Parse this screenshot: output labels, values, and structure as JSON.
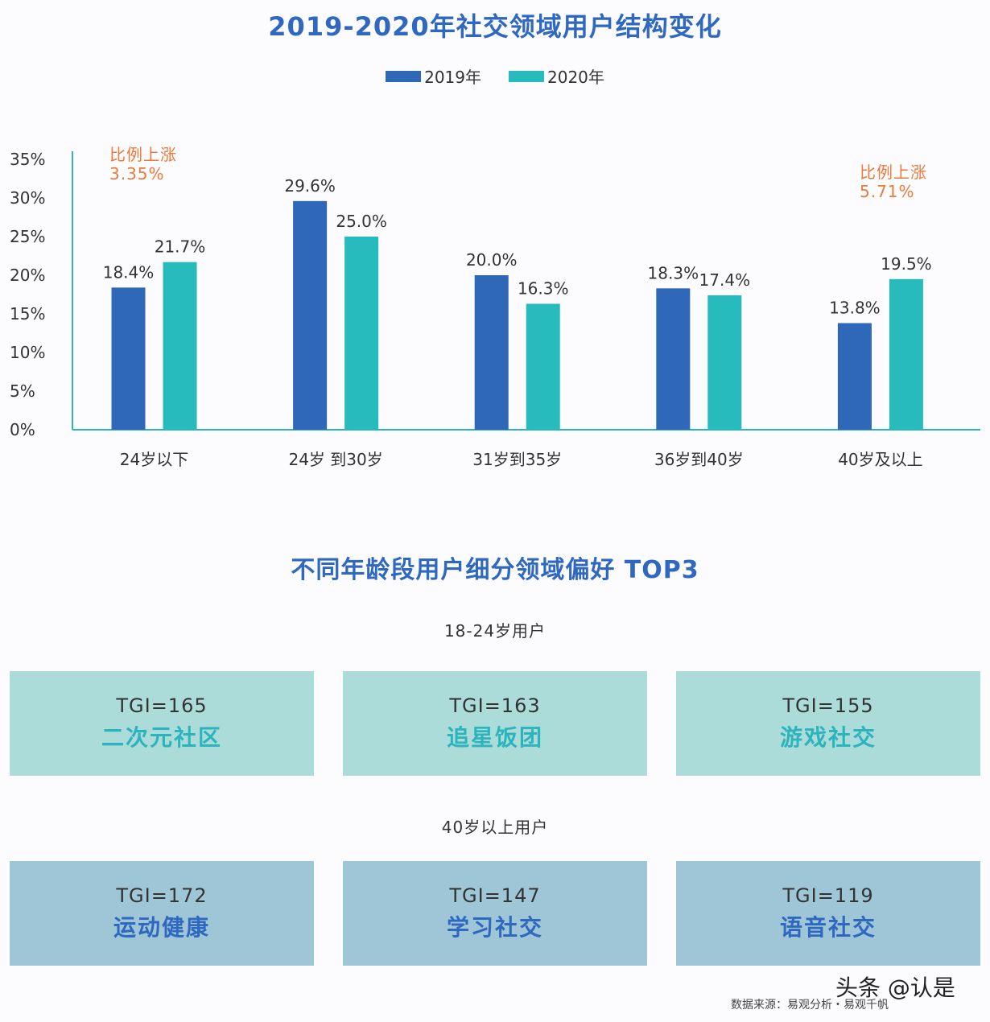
{
  "chart_data": {
    "type": "bar",
    "title": "2019-2020年社交领域用户结构变化",
    "categories": [
      "24岁以下",
      "24岁 到30岁",
      "31岁到35岁",
      "36岁到40岁",
      "40岁及以上"
    ],
    "series": [
      {
        "name": "2019年",
        "values": [
          18.4,
          29.6,
          20.0,
          18.3,
          13.8
        ],
        "labels": [
          "18.4%",
          "29.6%",
          "20.0%",
          "18.3%",
          "13.8%"
        ],
        "color": "#2f67b9"
      },
      {
        "name": "2020年",
        "values": [
          21.7,
          25.0,
          16.3,
          17.4,
          19.5
        ],
        "labels": [
          "21.7%",
          "25.0%",
          "16.3%",
          "17.4%",
          "19.5%"
        ],
        "color": "#27bbbd"
      }
    ],
    "yticks": [
      "0%",
      "5%",
      "10%",
      "15%",
      "20%",
      "25%",
      "30%",
      "35%"
    ],
    "ylim": [
      0,
      35
    ],
    "legend_position": "top-center",
    "grid": false,
    "annotations": [
      {
        "text": "比例上涨\n3.35%",
        "color": "#ec7a3a",
        "near": "24岁以下"
      },
      {
        "text": "比例上涨\n5.71%",
        "color": "#ec7a3a",
        "near": "40岁及以上"
      }
    ]
  },
  "preferences": {
    "title": "不同年龄段用户细分领域偏好 TOP3",
    "groups": [
      {
        "label": "18-24岁用户",
        "cards": [
          {
            "tgi": "TGI=165",
            "domain": "二次元社区"
          },
          {
            "tgi": "TGI=163",
            "domain": "追星饭团"
          },
          {
            "tgi": "TGI=155",
            "domain": "游戏社交"
          }
        ]
      },
      {
        "label": "40岁以上用户",
        "cards": [
          {
            "tgi": "TGI=172",
            "domain": "运动健康"
          },
          {
            "tgi": "TGI=147",
            "domain": "学习社交"
          },
          {
            "tgi": "TGI=119",
            "domain": "语音社交"
          }
        ]
      }
    ]
  },
  "footer": {
    "watermark": "头条 @认是",
    "source": "数据来源：易观分析・易观千帆"
  }
}
